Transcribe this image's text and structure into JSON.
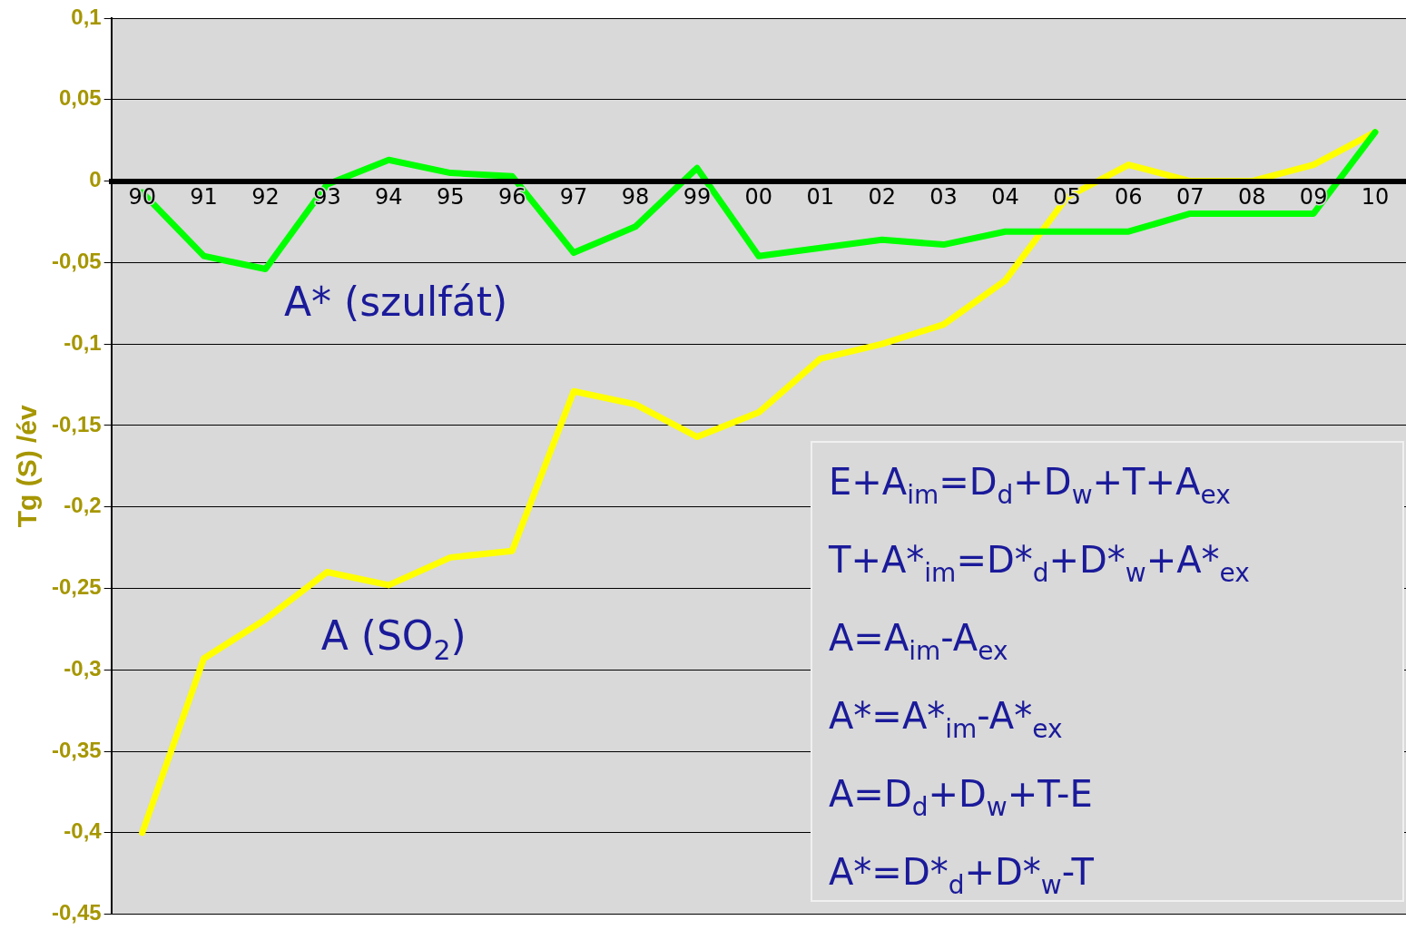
{
  "chart_data": {
    "type": "line",
    "ylabel": "Tg (S) /év",
    "categories": [
      "90",
      "91",
      "92",
      "93",
      "94",
      "95",
      "96",
      "97",
      "98",
      "99",
      "00",
      "01",
      "02",
      "03",
      "04",
      "05",
      "06",
      "07",
      "08",
      "09",
      "10"
    ],
    "series": [
      {
        "name": "A* (szulfát)",
        "color": "#00ff00",
        "values": [
          -0.007,
          -0.046,
          -0.054,
          -0.002,
          0.013,
          0.005,
          0.003,
          -0.044,
          -0.028,
          0.008,
          -0.046,
          -0.041,
          -0.036,
          -0.039,
          -0.031,
          -0.031,
          -0.031,
          -0.02,
          -0.02,
          -0.02,
          0.03
        ]
      },
      {
        "name": "A (SO$_{2}$)",
        "color": "#ffff00",
        "values": [
          -0.4,
          -0.293,
          -0.269,
          -0.24,
          -0.248,
          -0.231,
          -0.227,
          -0.129,
          -0.137,
          -0.157,
          -0.142,
          -0.109,
          -0.1,
          -0.088,
          -0.061,
          -0.01,
          0.01,
          0,
          0,
          0.01,
          0.03
        ]
      }
    ],
    "ylim": [
      -0.45,
      0.1
    ],
    "yticks": [
      {
        "value": 0.1,
        "label": "0,1"
      },
      {
        "value": 0.05,
        "label": "0,05"
      },
      {
        "value": 0,
        "label": "0"
      },
      {
        "value": -0.05,
        "label": "-0,05"
      },
      {
        "value": -0.1,
        "label": "-0,1"
      },
      {
        "value": -0.15,
        "label": "-0,15"
      },
      {
        "value": -0.2,
        "label": "-0,2"
      },
      {
        "value": -0.25,
        "label": "-0,25"
      },
      {
        "value": -0.3,
        "label": "-0,3"
      },
      {
        "value": -0.35,
        "label": "-0,35"
      },
      {
        "value": -0.4,
        "label": "-0,4"
      },
      {
        "value": -0.45,
        "label": "-0,45"
      }
    ],
    "grid": "y",
    "legend": false,
    "marker": "none",
    "line_style": "solid",
    "annotations": [
      "E+A$_{im}$=D$_{d}$+D$_{w}$+T+A$_{ex}$",
      "T+A*$_{im}$=D*$_{d}$+D*$_{w}$+A*$_{ex}$",
      "A=A$_{im}$-A$_{ex}$",
      "A*=A*$_{im}$-A*$_{ex}$",
      "A=D$_{d}$+D$_{w}$+T-E",
      "A*=D*$_{d}$+D*$_{w}$-T"
    ]
  }
}
